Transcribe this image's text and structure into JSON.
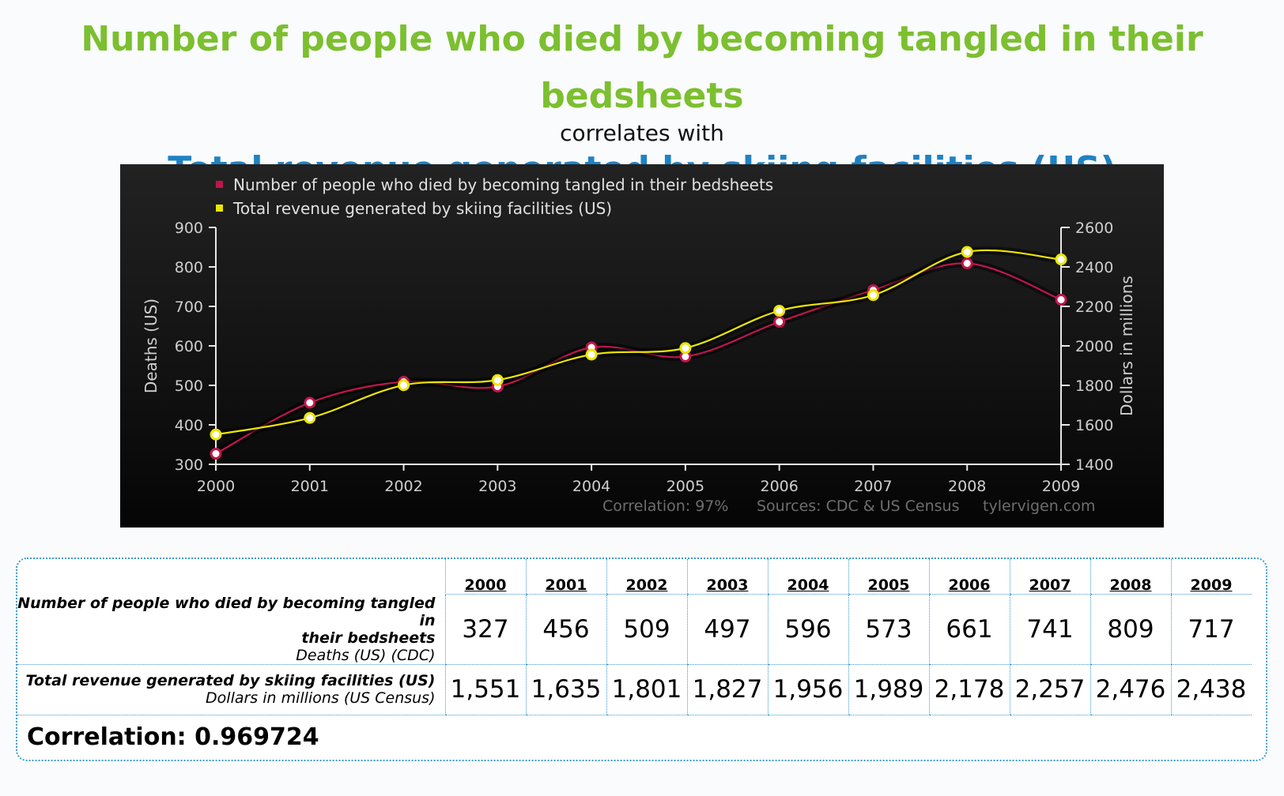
{
  "header": {
    "title_a": "Number of people who died by becoming tangled in their bedsheets",
    "connector": "correlates with",
    "title_b": "Total revenue generated by skiing facilities (US)"
  },
  "chart_data": {
    "type": "line",
    "x": [
      2000,
      2001,
      2002,
      2003,
      2004,
      2005,
      2006,
      2007,
      2008,
      2009
    ],
    "series": [
      {
        "name": "Number of people who died by becoming tangled in their bedsheets",
        "axis": "left",
        "color": "#c0164b",
        "values": [
          327,
          456,
          509,
          497,
          596,
          573,
          661,
          741,
          809,
          717
        ]
      },
      {
        "name": "Total revenue generated by skiing facilities (US)",
        "axis": "right",
        "color": "#ece600",
        "values": [
          1551,
          1635,
          1801,
          1827,
          1956,
          1989,
          2178,
          2257,
          2476,
          2438
        ]
      }
    ],
    "ylabel_left": "Deaths (US)",
    "ylabel_right": "Dollars in millions",
    "ylim_left": [
      300,
      900
    ],
    "ylim_right": [
      1400,
      2600
    ],
    "yticks_left": [
      300,
      400,
      500,
      600,
      700,
      800,
      900
    ],
    "yticks_right": [
      1400,
      1600,
      1800,
      2000,
      2200,
      2400,
      2600
    ],
    "legend_position": "top-left",
    "footer": {
      "correlation": "Correlation: 97%",
      "sources": "Sources: CDC & US Census",
      "site": "tylervigen.com"
    }
  },
  "table": {
    "years": [
      "2000",
      "2001",
      "2002",
      "2003",
      "2004",
      "2005",
      "2006",
      "2007",
      "2008",
      "2009"
    ],
    "row1": {
      "label_line1": "Number of people who died by becoming tangled in",
      "label_line2": "their bedsheets",
      "label_sub": "Deaths (US) (CDC)",
      "values": [
        "327",
        "456",
        "509",
        "497",
        "596",
        "573",
        "661",
        "741",
        "809",
        "717"
      ]
    },
    "row2": {
      "label_line1": "Total revenue generated by skiing facilities (US)",
      "label_sub": "Dollars in millions (US Census)",
      "values": [
        "1,551",
        "1,635",
        "1,801",
        "1,827",
        "1,956",
        "1,989",
        "2,178",
        "2,257",
        "2,476",
        "2,438"
      ]
    },
    "correlation": "Correlation: 0.969724"
  }
}
